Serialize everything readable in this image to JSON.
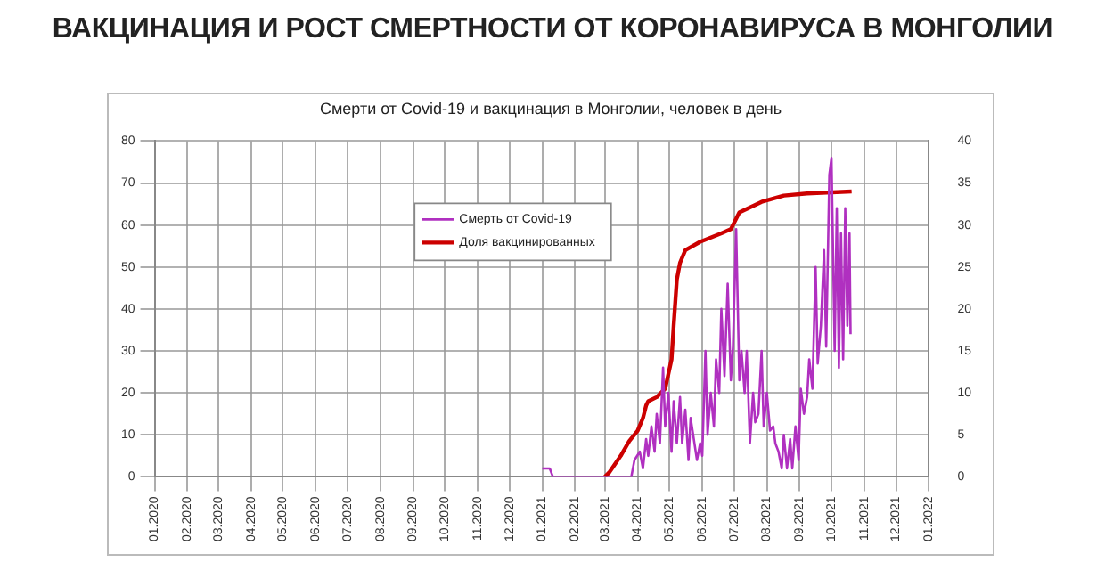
{
  "chart_data": {
    "type": "line",
    "title": "ВАКЦИНАЦИЯ И РОСТ СМЕРТНОСТИ ОТ КОРОНАВИРУСА В МОНГОЛИИ",
    "subtitle": "Смерти от Covid-19 и вакцинация в Монголии, человек в день",
    "xlim": [
      "2020-01",
      "2022-01"
    ],
    "xticks": [
      {
        "value": "2020-01",
        "label": "01.2020"
      },
      {
        "value": "2020-02",
        "label": "02.2020"
      },
      {
        "value": "2020-03",
        "label": "03.2020"
      },
      {
        "value": "2020-04",
        "label": "04.2020"
      },
      {
        "value": "2020-05",
        "label": "05.2020"
      },
      {
        "value": "2020-06",
        "label": "06.2020"
      },
      {
        "value": "2020-07",
        "label": "07.2020"
      },
      {
        "value": "2020-08",
        "label": "08.2020"
      },
      {
        "value": "2020-09",
        "label": "09.2020"
      },
      {
        "value": "2020-10",
        "label": "10.2020"
      },
      {
        "value": "2020-11",
        "label": "11.2020"
      },
      {
        "value": "2020-12",
        "label": "12.2020"
      },
      {
        "value": "2021-01",
        "label": "01.2021"
      },
      {
        "value": "2021-02",
        "label": "02.2021"
      },
      {
        "value": "2021-03",
        "label": "03.2021"
      },
      {
        "value": "2021-04",
        "label": "04.2021"
      },
      {
        "value": "2021-05",
        "label": "05.2021"
      },
      {
        "value": "2021-06",
        "label": "06.2021"
      },
      {
        "value": "2021-07",
        "label": "07.2021"
      },
      {
        "value": "2021-08",
        "label": "08.2021"
      },
      {
        "value": "2021-09",
        "label": "09.2021"
      },
      {
        "value": "2021-10",
        "label": "10.2021"
      },
      {
        "value": "2021-11",
        "label": "11.2021"
      },
      {
        "value": "2021-12",
        "label": "12.2021"
      },
      {
        "value": "2022-01",
        "label": "01.2022"
      }
    ],
    "ylim": [
      0,
      80
    ],
    "yticks": [
      0,
      10,
      20,
      30,
      40,
      50,
      60,
      70,
      80
    ],
    "y2lim": [
      0,
      40
    ],
    "y2ticks": [
      0,
      5,
      10,
      15,
      20,
      25,
      30,
      35,
      40
    ],
    "grid": true,
    "legend": "top",
    "marker": "none",
    "line_style": "solid",
    "series": [
      {
        "name": "Смерть от Covid-19",
        "color": "#b030c0",
        "x": [
          "2021-01-01",
          "2021-01-08",
          "2021-01-11",
          "2021-03-26",
          "2021-03-29",
          "2021-04-03",
          "2021-04-06",
          "2021-04-09",
          "2021-04-11",
          "2021-04-14",
          "2021-04-17",
          "2021-04-19",
          "2021-04-22",
          "2021-04-25",
          "2021-04-27",
          "2021-04-30",
          "2021-05-03",
          "2021-05-05",
          "2021-05-08",
          "2021-05-11",
          "2021-05-13",
          "2021-05-16",
          "2021-05-19",
          "2021-05-21",
          "2021-05-27",
          "2021-05-30",
          "2021-06-01",
          "2021-06-04",
          "2021-06-06",
          "2021-06-09",
          "2021-06-12",
          "2021-06-14",
          "2021-06-17",
          "2021-06-19",
          "2021-06-22",
          "2021-06-25",
          "2021-06-28",
          "2021-06-30",
          "2021-07-03",
          "2021-07-06",
          "2021-07-08",
          "2021-07-11",
          "2021-07-13",
          "2021-07-16",
          "2021-07-19",
          "2021-07-21",
          "2021-07-24",
          "2021-07-27",
          "2021-07-29",
          "2021-08-01",
          "2021-08-04",
          "2021-08-07",
          "2021-08-09",
          "2021-08-12",
          "2021-08-15",
          "2021-08-17",
          "2021-08-20",
          "2021-08-23",
          "2021-08-25",
          "2021-08-28",
          "2021-08-31",
          "2021-09-02",
          "2021-09-05",
          "2021-09-08",
          "2021-09-10",
          "2021-09-13",
          "2021-09-16",
          "2021-09-18",
          "2021-09-21",
          "2021-09-24",
          "2021-09-26",
          "2021-09-29",
          "2021-10-01",
          "2021-10-04",
          "2021-10-06",
          "2021-10-08",
          "2021-10-10",
          "2021-10-12",
          "2021-10-14",
          "2021-10-16",
          "2021-10-18",
          "2021-10-19"
        ],
        "values": [
          2,
          2,
          0,
          0,
          4,
          6,
          2,
          9,
          5,
          12,
          6,
          15,
          8,
          26,
          12,
          20,
          6,
          18,
          8,
          19,
          8,
          16,
          4,
          14,
          4,
          8,
          5,
          30,
          10,
          20,
          12,
          28,
          20,
          40,
          24,
          46,
          23,
          31,
          59,
          23,
          30,
          20,
          30,
          8,
          20,
          13,
          15,
          30,
          12,
          20,
          11,
          12,
          8,
          6,
          2,
          10,
          2,
          9,
          2,
          12,
          4,
          21,
          15,
          19,
          28,
          21,
          50,
          27,
          36,
          54,
          31,
          72,
          76,
          30,
          64,
          26,
          58,
          28,
          64,
          36,
          58,
          34
        ]
      },
      {
        "name": "Доля вакцинированных",
        "color": "#cc0000",
        "x": [
          "2021-03-01",
          "2021-03-05",
          "2021-03-16",
          "2021-03-24",
          "2021-04-01",
          "2021-04-06",
          "2021-04-09",
          "2021-04-11",
          "2021-04-19",
          "2021-04-27",
          "2021-05-03",
          "2021-05-05",
          "2021-05-08",
          "2021-05-11",
          "2021-05-16",
          "2021-05-30",
          "2021-06-19",
          "2021-06-28",
          "2021-07-06",
          "2021-07-27",
          "2021-08-17",
          "2021-09-08",
          "2021-10-20"
        ],
        "values": [
          0,
          1,
          5,
          8.5,
          11,
          14,
          17,
          18,
          19,
          21,
          28,
          36,
          47,
          51,
          54,
          56,
          58,
          59,
          63,
          65.5,
          67,
          67.5,
          68
        ]
      }
    ]
  }
}
